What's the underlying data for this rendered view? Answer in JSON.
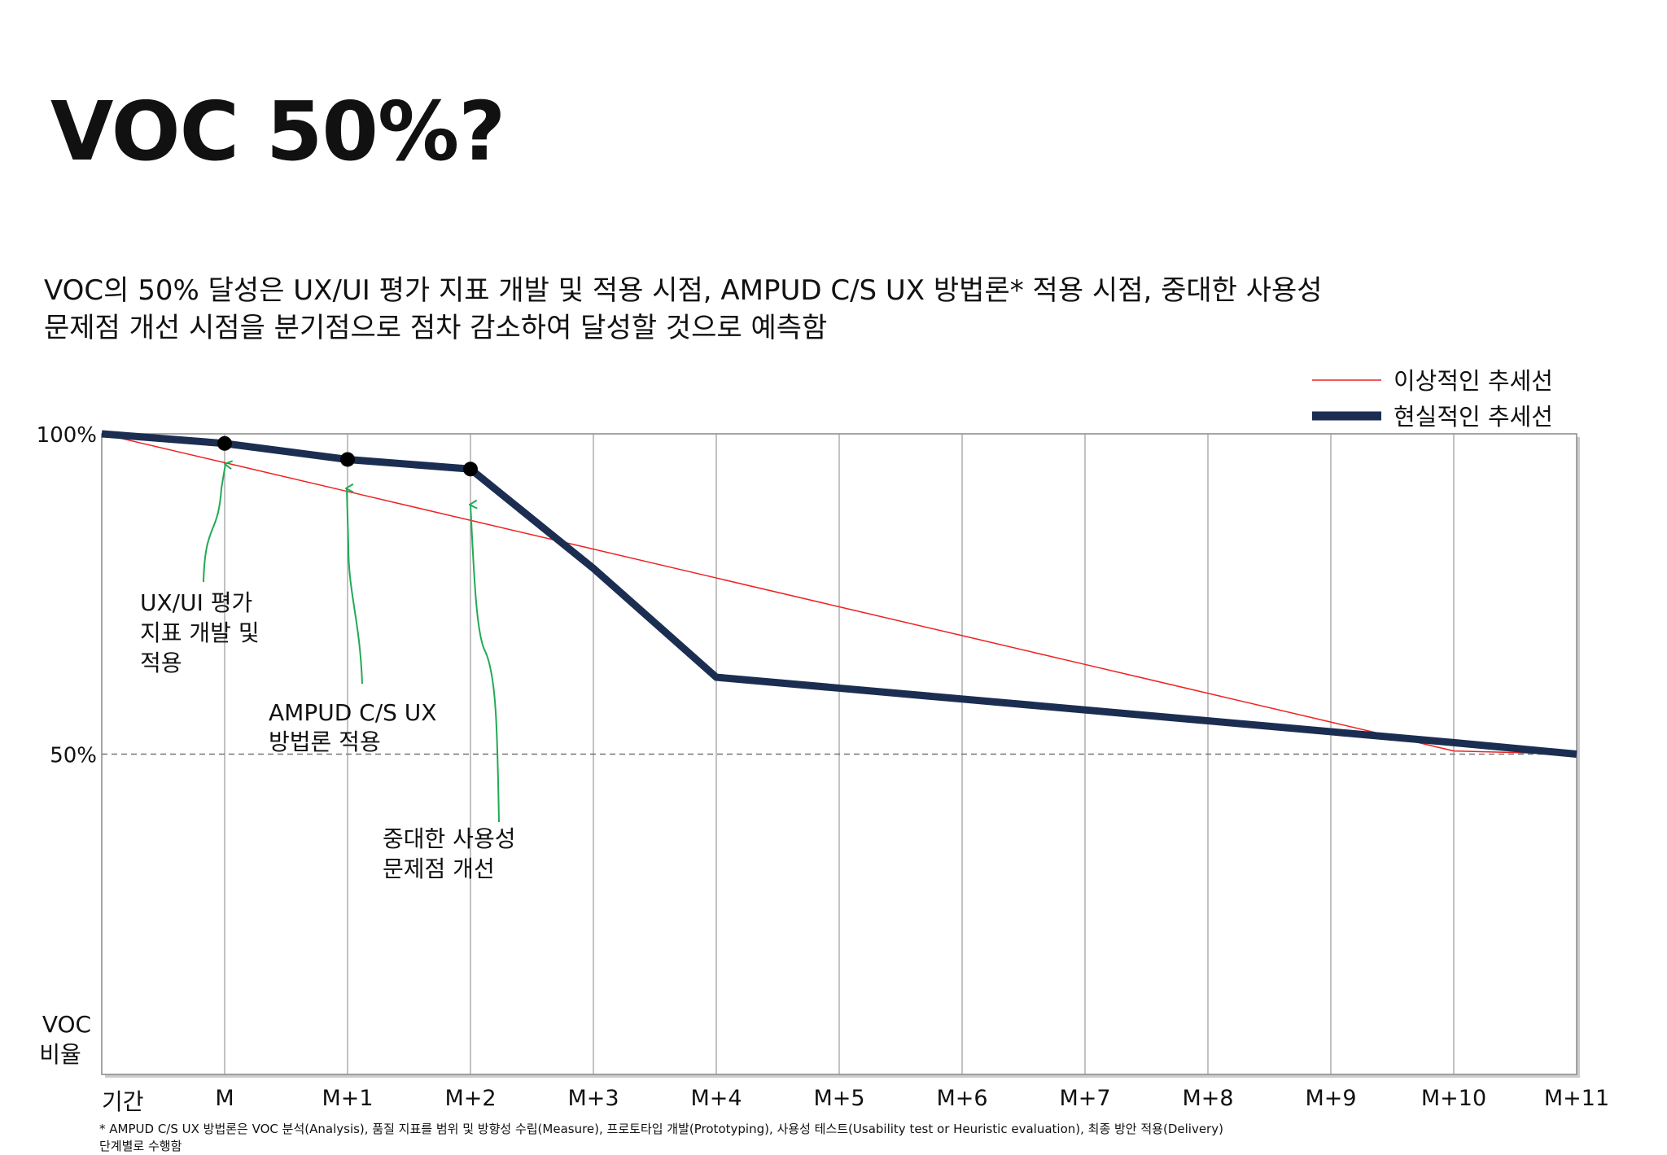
{
  "slide": {
    "title": "VOC 50%?",
    "subtitle_line1": "VOC의 50% 달성은 UX/UI 평가 지표 개발 및 적용 시점, AMPUD C/S UX 방법론* 적용 시점, 중대한 사용성",
    "subtitle_line2": "문제점 개선 시점을 분기점으로 점차 감소하여 달성할 것으로 예측함",
    "footnote_line1": "* AMPUD C/S UX 방법론은 VOC 분석(Analysis), 품질 지표를 범위 및 방향성 수립(Measure), 프로토타입 개발(Prototyping), 사용성 테스트(Usability test or Heuristic evaluation), 최종 방안 적용(Delivery)",
    "footnote_line2": "단계별로 수행함"
  },
  "chart_data": {
    "type": "line",
    "categories": [
      "",
      "M",
      "M+1",
      "M+2",
      "M+3",
      "M+4",
      "M+5",
      "M+6",
      "M+7",
      "M+8",
      "M+9",
      "M+10",
      "M+11"
    ],
    "xlabel": "기간",
    "ylabel_line1": "VOC",
    "ylabel_line2": "비율",
    "ylim": [
      0,
      100
    ],
    "yticks": [
      {
        "value": 100,
        "label": "100%"
      },
      {
        "value": 50,
        "label": "50%"
      }
    ],
    "reference_line": {
      "value": 50,
      "style": "dashed"
    },
    "grid": "vertical",
    "legend_position": "top-right",
    "series": [
      {
        "name": "이상적인 추세선",
        "color": "#ee2222",
        "width": 1.5,
        "values": [
          100,
          95.5,
          91,
          86.5,
          82,
          77.5,
          73,
          68.5,
          64,
          59.5,
          55,
          50.5,
          50
        ]
      },
      {
        "name": "현실적인 추세선",
        "color": "#1b2e52",
        "width": 9,
        "values": [
          100,
          98.5,
          96,
          94.5,
          79,
          62,
          60.3,
          58.6,
          56.9,
          55.2,
          53.5,
          51.8,
          50
        ]
      }
    ],
    "markers": [
      {
        "index": 1,
        "value": 98.5
      },
      {
        "index": 2,
        "value": 96
      },
      {
        "index": 3,
        "value": 94.5
      }
    ],
    "annotations": [
      {
        "lines": [
          "UX/UI 평가",
          "지표 개발 및",
          "적용"
        ],
        "target_index": 1
      },
      {
        "lines": [
          "AMPUD C/S UX",
          "방법론 적용"
        ],
        "target_index": 2
      },
      {
        "lines": [
          "중대한 사용성",
          "문제점 개선"
        ],
        "target_index": 3
      }
    ],
    "annotation_color": "#22aa55"
  }
}
